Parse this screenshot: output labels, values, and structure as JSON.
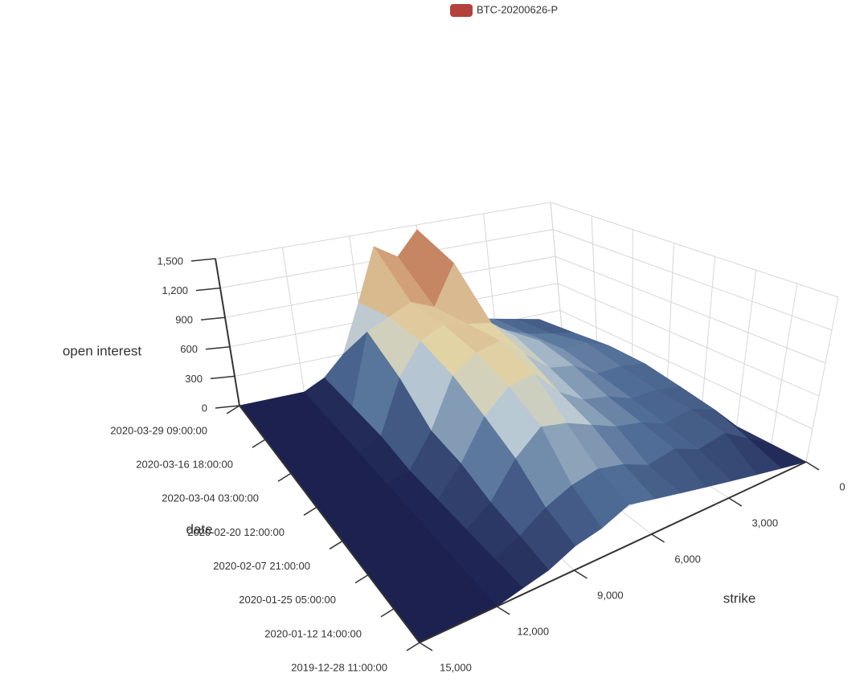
{
  "chart_data": {
    "type": "surface",
    "legend": {
      "name": "BTC-20200626-P",
      "color": "#b5413d"
    },
    "x_title": "strike",
    "y_title": "date",
    "z_title": "open interest",
    "x": [
      0,
      1000,
      2000,
      3000,
      4000,
      5000,
      6000,
      7000,
      8000,
      9000,
      10000,
      11000,
      12000,
      13000,
      14000,
      15000
    ],
    "y": [
      "2019-12-28 11:00:00",
      "2020-01-12 14:00:00",
      "2020-01-25 05:00:00",
      "2020-02-07 21:00:00",
      "2020-02-20 12:00:00",
      "2020-03-04 03:00:00",
      "2020-03-16 18:00:00",
      "2020-03-29 09:00:00"
    ],
    "z": [
      [
        0,
        50,
        100,
        150,
        200,
        250,
        300,
        350,
        250,
        200,
        100,
        50,
        0,
        0,
        0,
        0
      ],
      [
        0,
        150,
        300,
        250,
        350,
        300,
        400,
        450,
        400,
        300,
        150,
        50,
        0,
        0,
        0,
        0
      ],
      [
        0,
        250,
        350,
        300,
        400,
        450,
        550,
        650,
        700,
        500,
        200,
        50,
        0,
        0,
        0,
        0
      ],
      [
        0,
        300,
        350,
        350,
        450,
        500,
        650,
        900,
        850,
        650,
        300,
        50,
        0,
        0,
        0,
        0
      ],
      [
        0,
        350,
        400,
        400,
        550,
        600,
        800,
        1000,
        950,
        800,
        350,
        50,
        0,
        0,
        0,
        0
      ],
      [
        0,
        350,
        450,
        450,
        600,
        700,
        900,
        950,
        1000,
        900,
        600,
        100,
        0,
        0,
        0,
        0
      ],
      [
        0,
        300,
        350,
        400,
        500,
        650,
        1300,
        900,
        1000,
        900,
        800,
        100,
        0,
        0,
        0,
        0
      ],
      [
        0,
        250,
        300,
        350,
        400,
        500,
        1450,
        1200,
        1350,
        800,
        300,
        100,
        0,
        0,
        0,
        0
      ]
    ],
    "xlim": [
      0,
      15000
    ],
    "xticks": [
      0,
      {
        "value": 3000,
        "label": "3,000"
      },
      {
        "value": 6000,
        "label": "6,000"
      },
      {
        "value": 9000,
        "label": "9,000"
      },
      {
        "value": 12000,
        "label": "12,000"
      },
      {
        "value": 15000,
        "label": "15,000"
      }
    ],
    "zlim": [
      0,
      1500
    ],
    "zticks": [
      0,
      300,
      600,
      900,
      {
        "value": 1200,
        "label": "1,200"
      },
      {
        "value": 1500,
        "label": "1,500"
      }
    ],
    "colorscale": [
      [
        0,
        "#1c2150"
      ],
      [
        0.25,
        "#4f6d96"
      ],
      [
        0.45,
        "#b9c9d4"
      ],
      [
        0.6,
        "#e3d6a8"
      ],
      [
        0.8,
        "#c98a66"
      ],
      [
        1,
        "#8b1c22"
      ]
    ],
    "grid": true
  }
}
